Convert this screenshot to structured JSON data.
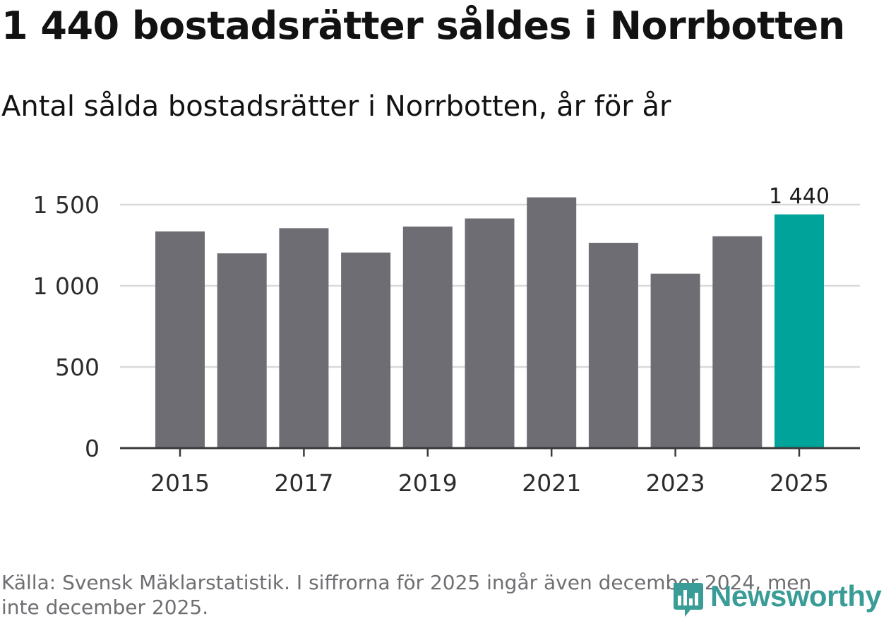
{
  "title": "1 440 bostadsrätter såldes i Norrbotten",
  "subtitle": "Antal sålda bostadsrätter i Norrbotten, år för år",
  "source": "Källa: Svensk Mäklarstatistik. I siffrorna för 2025 ingår även december 2024, men inte december 2025.",
  "logo": {
    "text": "Newsworthy",
    "icon": "newsworthy-logo-icon"
  },
  "colors": {
    "bar": "#6e6d74",
    "highlight": "#00a39a",
    "grid": "#d9d9d9",
    "axis": "#3a3a3a",
    "logo": "#3a9c97"
  },
  "chart_data": {
    "type": "bar",
    "categories": [
      "2015",
      "2016",
      "2017",
      "2018",
      "2019",
      "2020",
      "2021",
      "2022",
      "2023",
      "2024",
      "2025"
    ],
    "values": [
      1335,
      1200,
      1355,
      1205,
      1365,
      1415,
      1545,
      1265,
      1075,
      1305,
      1440
    ],
    "highlight_index": 10,
    "highlight_label": "1 440",
    "xtick_labels": [
      "2015",
      "2017",
      "2019",
      "2021",
      "2023",
      "2025"
    ],
    "yticks": [
      0,
      500,
      1000,
      1500
    ],
    "ytick_labels": [
      "0",
      "500",
      "1 000",
      "1 500"
    ],
    "ylim": [
      0,
      1500
    ],
    "grid": true,
    "xlabel": "",
    "ylabel": ""
  }
}
